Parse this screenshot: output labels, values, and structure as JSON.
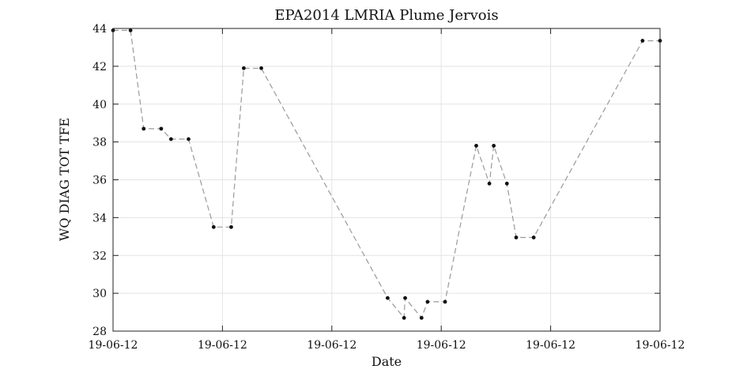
{
  "chart_data": {
    "type": "line",
    "title": "EPA2014 LMRIA Plume Jervois",
    "xlabel": "Date",
    "ylabel": "WQ DIAG TOT TFE",
    "grid": true,
    "ylim": [
      28,
      44
    ],
    "yticks": [
      28,
      30,
      32,
      34,
      36,
      38,
      40,
      42,
      44
    ],
    "xlim": [
      0,
      100
    ],
    "xticks": [
      {
        "x": 0,
        "label": "19-06-12"
      },
      {
        "x": 20,
        "label": "19-06-12"
      },
      {
        "x": 40,
        "label": "19-06-12"
      },
      {
        "x": 60,
        "label": "19-06-12"
      },
      {
        "x": 80,
        "label": "19-06-12"
      },
      {
        "x": 100,
        "label": "19-06-12"
      }
    ],
    "series": [
      {
        "line_color": "#9a9a9a",
        "line_style": "dashed",
        "marker_color": "#111111",
        "points": [
          {
            "x": 0.0,
            "y": 43.9
          },
          {
            "x": 3.2,
            "y": 43.9
          },
          {
            "x": 5.6,
            "y": 38.7
          },
          {
            "x": 8.8,
            "y": 38.7
          },
          {
            "x": 10.6,
            "y": 38.15
          },
          {
            "x": 13.8,
            "y": 38.15
          },
          {
            "x": 18.4,
            "y": 33.5
          },
          {
            "x": 21.6,
            "y": 33.5
          },
          {
            "x": 23.9,
            "y": 41.9
          },
          {
            "x": 27.1,
            "y": 41.9
          },
          {
            "x": 50.2,
            "y": 29.75
          },
          {
            "x": 53.2,
            "y": 28.7
          },
          {
            "x": 53.4,
            "y": 29.75
          },
          {
            "x": 56.4,
            "y": 28.7
          },
          {
            "x": 57.5,
            "y": 29.55
          },
          {
            "x": 60.7,
            "y": 29.55
          },
          {
            "x": 66.4,
            "y": 37.8
          },
          {
            "x": 68.8,
            "y": 35.8
          },
          {
            "x": 69.6,
            "y": 37.8
          },
          {
            "x": 72.0,
            "y": 35.8
          },
          {
            "x": 73.7,
            "y": 32.95
          },
          {
            "x": 76.9,
            "y": 32.95
          },
          {
            "x": 96.8,
            "y": 43.35
          },
          {
            "x": 100.0,
            "y": 43.35
          }
        ]
      }
    ]
  }
}
